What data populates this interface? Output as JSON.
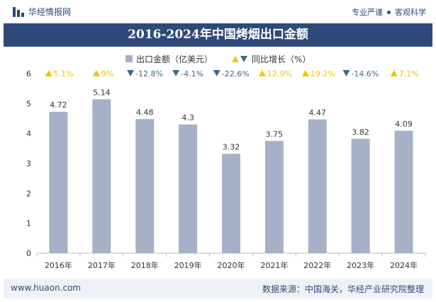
{
  "header": {
    "brand": "华经情报网",
    "slogan_left": "专业严谨",
    "slogan_right": "客观科学"
  },
  "title": "2016-2024年中国烤烟出口金额",
  "footer": {
    "website": "www.huaon.com",
    "source": "数据来源：中国海关，华经产业研究院整理"
  },
  "colors": {
    "bar": "#a6b0c7",
    "up": "#f2c500",
    "down": "#3e6b82",
    "header": "#2f4a7a"
  },
  "chart_data": {
    "type": "bar",
    "categories": [
      "2016年",
      "2017年",
      "2018年",
      "2019年",
      "2020年",
      "2021年",
      "2022年",
      "2023年",
      "2024年"
    ],
    "series": [
      {
        "name": "出口金额（亿美元）",
        "values": [
          4.72,
          5.14,
          4.48,
          4.3,
          3.32,
          3.75,
          4.47,
          3.82,
          4.09
        ]
      }
    ],
    "growth": {
      "name": "同比增长（%）",
      "labels": [
        "5.1%",
        "9%",
        "-12.8%",
        "-4.1%",
        "-22.6%",
        "12.9%",
        "19.2%",
        "-14.6%",
        "7.1%"
      ],
      "direction": [
        "up",
        "up",
        "down",
        "down",
        "down",
        "up",
        "up",
        "down",
        "up"
      ]
    },
    "value_labels": [
      "4.72",
      "5.14",
      "4.48",
      "4.3",
      "3.32",
      "3.75",
      "4.47",
      "3.82",
      "4.09"
    ],
    "ylim": [
      0,
      6
    ],
    "yticks": [
      "0",
      "1",
      "2",
      "3",
      "4",
      "5",
      "6"
    ],
    "legend_position": "top-center",
    "grid": false
  }
}
